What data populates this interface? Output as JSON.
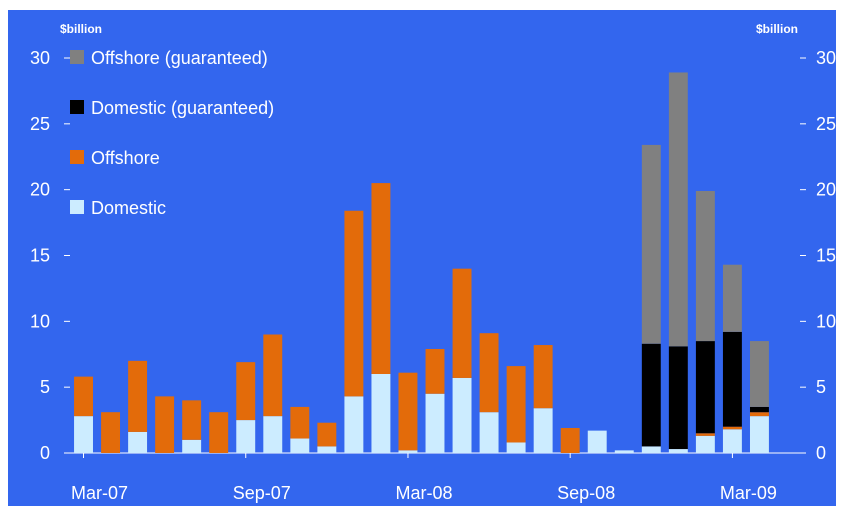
{
  "chart_data": {
    "type": "bar",
    "stacked": true,
    "title": "",
    "xlabel": "",
    "ylabel": "$billion",
    "ylabel_right": "$billion",
    "ylim": [
      0,
      30
    ],
    "yticks": [
      0,
      5,
      10,
      15,
      20,
      25,
      30
    ],
    "grid": false,
    "legend_position": "top-left",
    "x_tick_labels": [
      "Mar-07",
      "Sep-07",
      "Mar-08",
      "Sep-08",
      "Mar-09"
    ],
    "categories": [
      "Mar-07",
      "Apr-07",
      "May-07",
      "Jun-07",
      "Jul-07",
      "Aug-07",
      "Sep-07",
      "Oct-07",
      "Nov-07",
      "Dec-07",
      "Jan-08",
      "Feb-08",
      "Mar-08",
      "Apr-08",
      "May-08",
      "Jun-08",
      "Jul-08",
      "Aug-08",
      "Sep-08",
      "Oct-08",
      "Nov-08",
      "Dec-08",
      "Jan-09",
      "Feb-09",
      "Mar-09",
      "Apr-09",
      "May-09"
    ],
    "series": [
      {
        "name": "Domestic",
        "color": "#ccecff",
        "values": [
          2.8,
          0,
          1.6,
          0,
          1.0,
          0,
          2.5,
          2.8,
          1.1,
          0.5,
          4.3,
          6.0,
          0.2,
          4.5,
          5.7,
          3.1,
          0.8,
          3.4,
          0,
          1.7,
          0.2,
          0.5,
          0.3,
          1.3,
          1.8,
          2.8,
          0
        ]
      },
      {
        "name": "Offshore",
        "color": "#e36b0a",
        "values": [
          3.0,
          3.1,
          5.4,
          4.3,
          3.0,
          3.1,
          4.4,
          6.2,
          2.4,
          1.8,
          14.1,
          14.5,
          5.9,
          3.4,
          8.3,
          6.0,
          5.8,
          4.8,
          1.9,
          0,
          0,
          0,
          0,
          0.2,
          0.2,
          0.3,
          0
        ]
      },
      {
        "name": "Domestic (guaranteed)",
        "color": "#000000",
        "values": [
          0,
          0,
          0,
          0,
          0,
          0,
          0,
          0,
          0,
          0,
          0,
          0,
          0,
          0,
          0,
          0,
          0,
          0,
          0,
          0,
          0,
          7.8,
          7.8,
          7.0,
          7.2,
          0.4,
          0
        ]
      },
      {
        "name": "Offshore (guaranteed)",
        "color": "#808080",
        "values": [
          0,
          0,
          0,
          0,
          0,
          0,
          0,
          0,
          0,
          0,
          0,
          0,
          0,
          0,
          0,
          0,
          0,
          0,
          0,
          0,
          0,
          15.1,
          20.8,
          11.4,
          5.1,
          5.0,
          0
        ]
      }
    ]
  },
  "axis": {
    "unit_left": "$billion",
    "unit_right": "$billion"
  }
}
